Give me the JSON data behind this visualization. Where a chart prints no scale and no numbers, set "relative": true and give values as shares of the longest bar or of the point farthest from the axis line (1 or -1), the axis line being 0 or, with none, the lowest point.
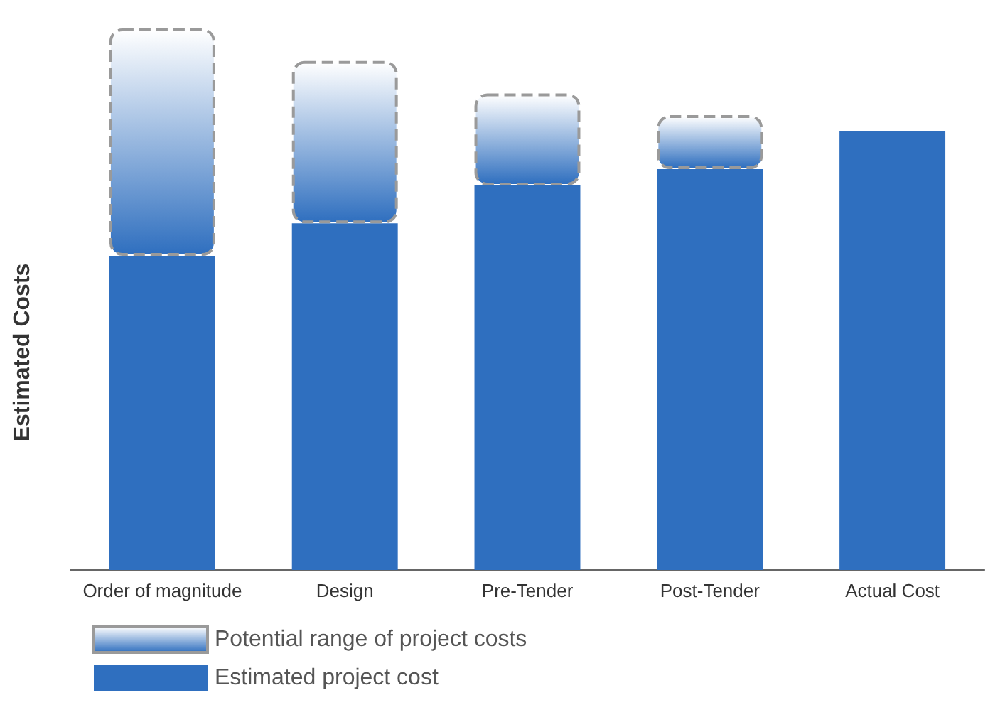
{
  "chart_data": {
    "type": "bar",
    "relative": true,
    "ylabel": "Estimated Costs",
    "categories": [
      "Order of magnitude",
      "Design",
      "Pre-Tender",
      "Post-Tender",
      "Actual Cost"
    ],
    "series": [
      {
        "name": "Estimated project cost",
        "color": "#2f6fbf",
        "values": [
          0.58,
          0.64,
          0.71,
          0.74,
          0.81
        ]
      },
      {
        "name": "Potential range of project costs",
        "color": "#9a9a9a",
        "values": [
          0.42,
          0.3,
          0.17,
          0.1,
          null
        ],
        "line_style": "dashed"
      }
    ],
    "stacked": true,
    "legend": "bottom left"
  }
}
